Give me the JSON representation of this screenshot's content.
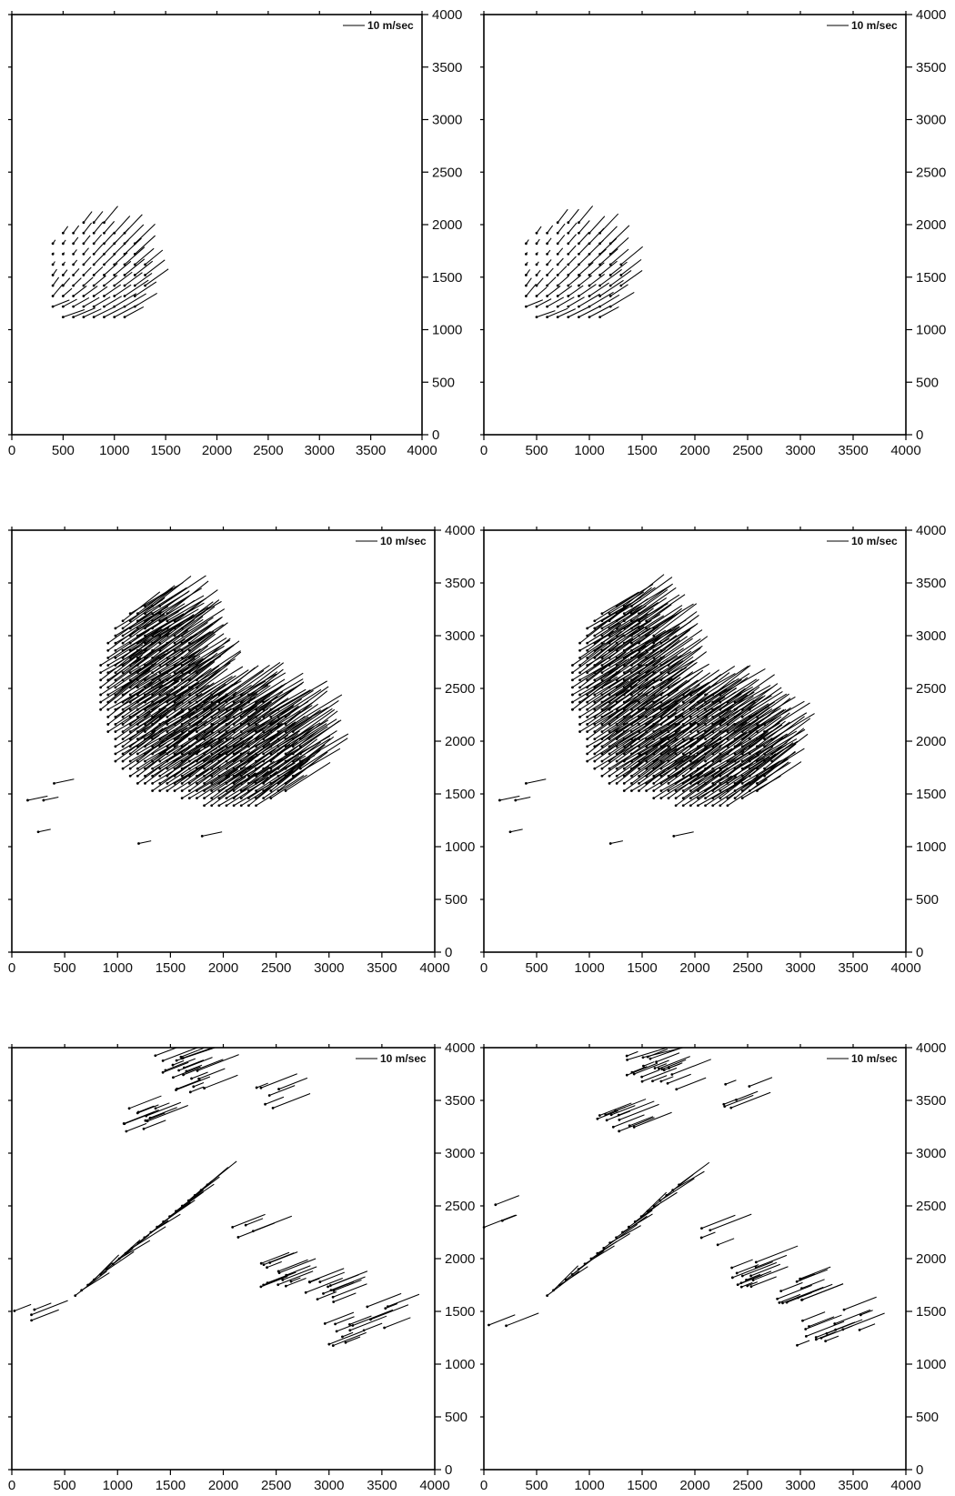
{
  "chart_data": [
    {
      "type": "vector-field",
      "legend": {
        "label": "10 m/sec",
        "length_ms": 10
      },
      "xlim": [
        0,
        4000
      ],
      "ylim": [
        0,
        4000
      ],
      "xticks": [
        "0",
        "500",
        "1000",
        "1500",
        "2000",
        "2500",
        "3000",
        "3500",
        "4000"
      ],
      "yticks": [
        "0",
        "500",
        "1000",
        "1500",
        "2000",
        "2500",
        "3000",
        "3500",
        "4000"
      ],
      "field": {
        "kind": "rotor",
        "center": [
          300,
          1620
        ],
        "radius": 480,
        "speed": 10,
        "core_radius": 160,
        "outflow": 6,
        "shape": "cluster-small"
      }
    },
    {
      "type": "vector-field",
      "legend": {
        "label": "10 m/sec",
        "length_ms": 10
      },
      "xlim": [
        0,
        4000
      ],
      "ylim": [
        0,
        4000
      ],
      "xticks": [
        "0",
        "500",
        "1000",
        "1500",
        "2000",
        "2500",
        "3000",
        "3500",
        "4000"
      ],
      "yticks": [
        "0",
        "500",
        "1000",
        "1500",
        "2000",
        "2500",
        "3000",
        "3500",
        "4000"
      ],
      "field": {
        "kind": "rotor",
        "center": [
          320,
          1620
        ],
        "radius": 480,
        "speed": 10,
        "core_radius": 160,
        "outflow": 6,
        "shape": "cluster-small"
      }
    },
    {
      "type": "vector-field",
      "legend": {
        "label": "10 m/sec",
        "length_ms": 10
      },
      "xlim": [
        0,
        4000
      ],
      "ylim": [
        0,
        4000
      ],
      "xticks": [
        "0",
        "500",
        "1000",
        "1500",
        "2000",
        "2500",
        "3000",
        "3500",
        "4000"
      ],
      "yticks": [
        "0",
        "500",
        "1000",
        "1500",
        "2000",
        "2500",
        "3000",
        "3500",
        "4000"
      ],
      "field": {
        "kind": "uniform",
        "direction": [
          -0.83,
          -0.56
        ],
        "speed": 20,
        "shape": "cluster-large"
      }
    },
    {
      "type": "vector-field",
      "legend": {
        "label": "10 m/sec",
        "length_ms": 10
      },
      "xlim": [
        0,
        4000
      ],
      "ylim": [
        0,
        4000
      ],
      "xticks": [
        "0",
        "500",
        "1000",
        "1500",
        "2000",
        "2500",
        "3000",
        "3500",
        "4000"
      ],
      "yticks": [
        "0",
        "500",
        "1000",
        "1500",
        "2000",
        "2500",
        "3000",
        "3500",
        "4000"
      ],
      "field": {
        "kind": "uniform",
        "direction": [
          -0.83,
          -0.56
        ],
        "speed": 19,
        "shape": "cluster-large"
      }
    },
    {
      "type": "vector-field",
      "legend": {
        "label": "10 m/sec",
        "length_ms": 10
      },
      "xlim": [
        0,
        4000
      ],
      "ylim": [
        0,
        4000
      ],
      "xticks": [
        "0",
        "500",
        "1000",
        "1500",
        "2000",
        "2500",
        "3000",
        "3500",
        "4000"
      ],
      "yticks": [
        "0",
        "500",
        "1000",
        "1500",
        "2000",
        "2500",
        "3000",
        "3500",
        "4000"
      ],
      "field": {
        "kind": "sparse",
        "speed": 20,
        "shape": "scattered"
      }
    },
    {
      "type": "vector-field",
      "legend": {
        "label": "10 m/sec",
        "length_ms": 10
      },
      "xlim": [
        0,
        4000
      ],
      "ylim": [
        0,
        4000
      ],
      "xticks": [
        "0",
        "500",
        "1000",
        "1500",
        "2000",
        "2500",
        "3000",
        "3500",
        "4000"
      ],
      "yticks": [
        "0",
        "500",
        "1000",
        "1500",
        "2000",
        "2500",
        "3000",
        "3500",
        "4000"
      ],
      "field": {
        "kind": "sparse",
        "speed": 20,
        "shape": "scattered"
      }
    }
  ]
}
